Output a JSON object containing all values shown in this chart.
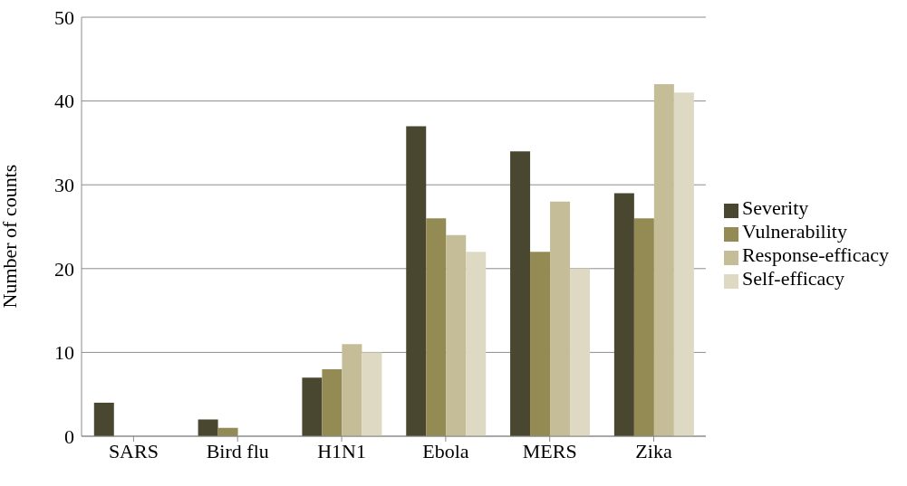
{
  "chart_data": {
    "type": "bar",
    "ylabel": "Number of counts",
    "categories": [
      "SARS",
      "Bird flu",
      "H1N1",
      "Ebola",
      "MERS",
      "Zika"
    ],
    "series": [
      {
        "name": "Severity",
        "color": "#4a4730",
        "values": [
          4,
          2,
          7,
          37,
          34,
          29
        ]
      },
      {
        "name": "Vulnerability",
        "color": "#948a54",
        "values": [
          0,
          1,
          8,
          26,
          22,
          26
        ]
      },
      {
        "name": "Response-efficacy",
        "color": "#c4bd97",
        "values": [
          0,
          0,
          11,
          24,
          28,
          42
        ]
      },
      {
        "name": "Self-efficacy",
        "color": "#ddd9c3",
        "values": [
          0,
          0,
          10,
          22,
          20,
          41
        ]
      }
    ],
    "ylim": [
      0,
      50
    ],
    "yticks": [
      0,
      10,
      20,
      30,
      40,
      50
    ],
    "grid": "y",
    "legend": "right"
  }
}
